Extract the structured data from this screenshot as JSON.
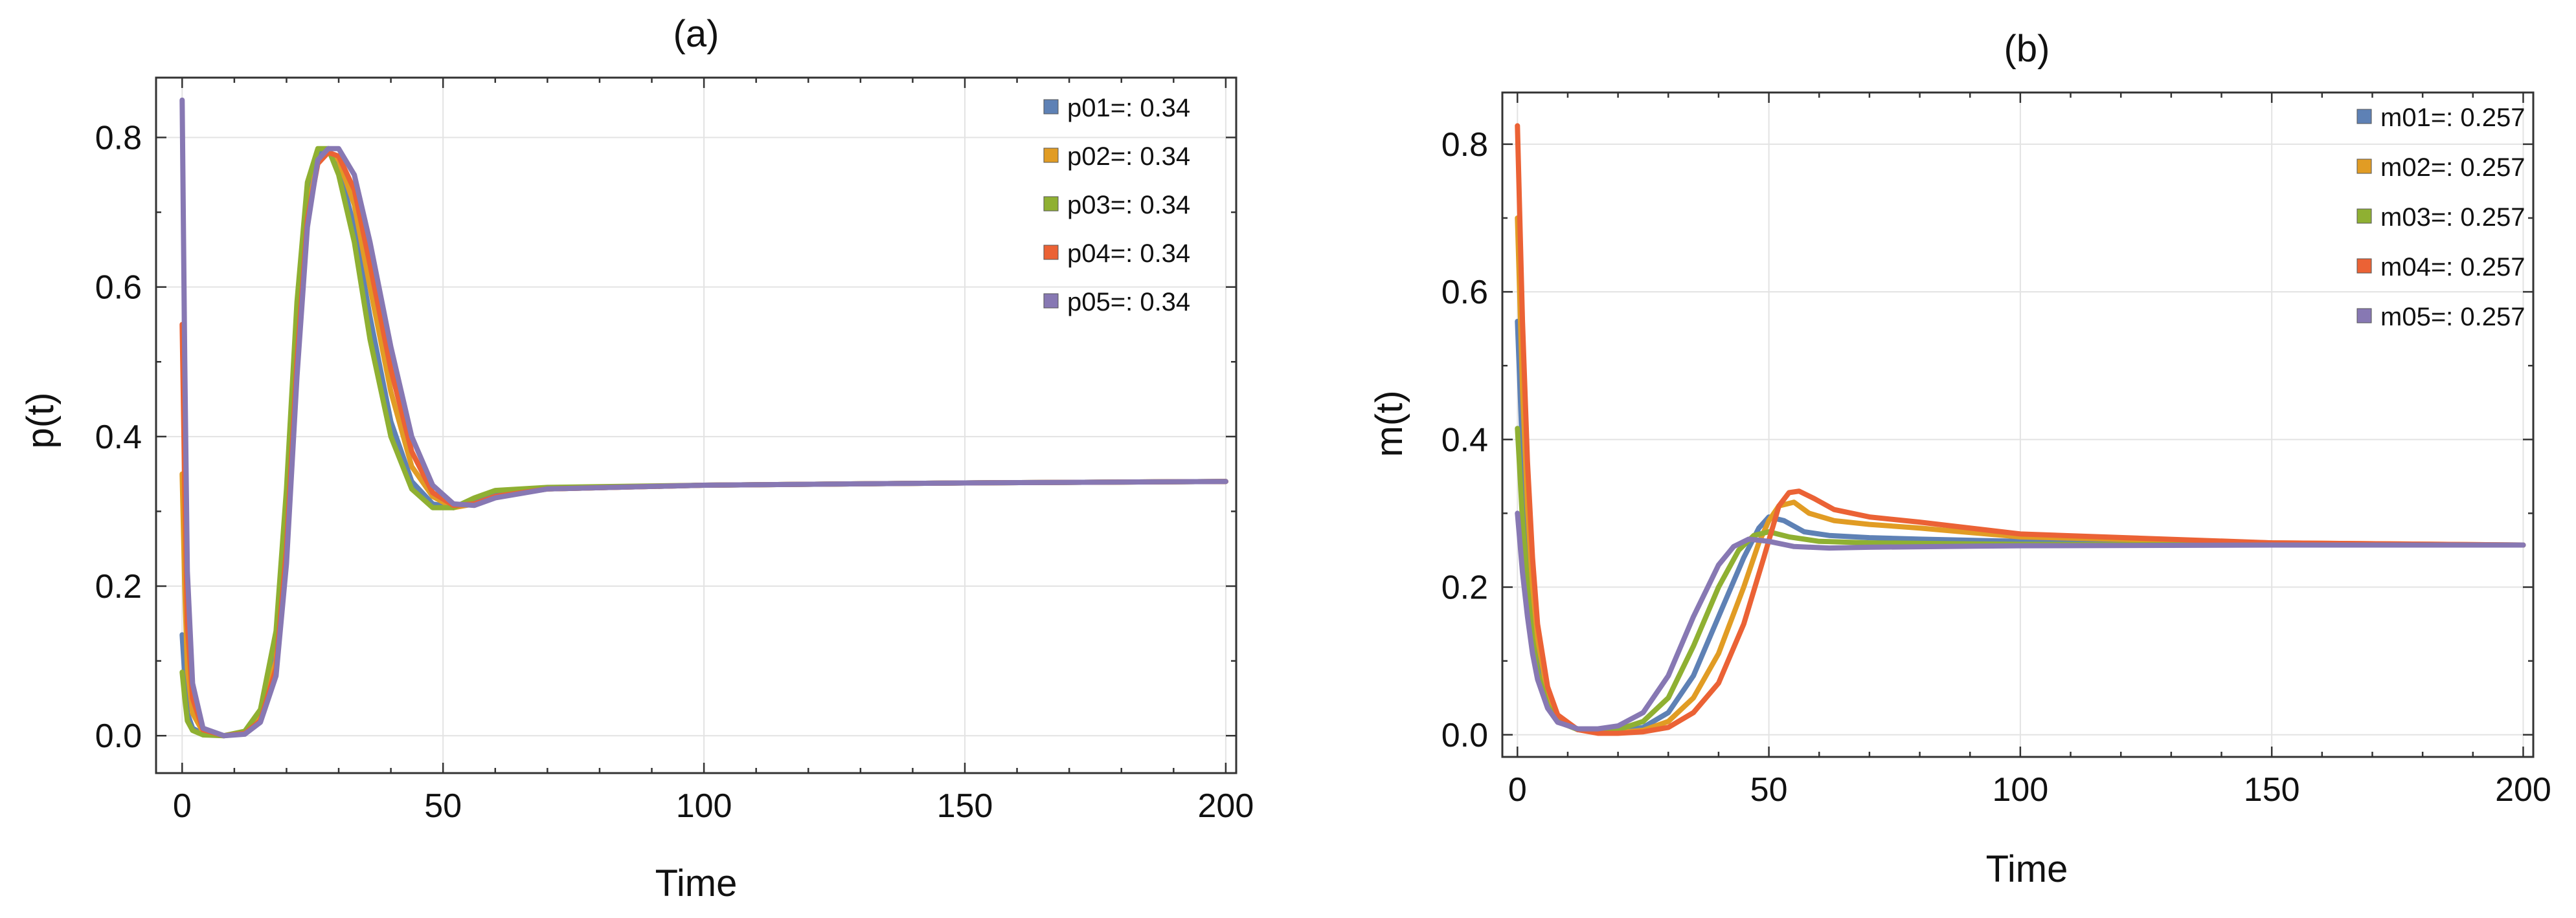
{
  "chart_data": [
    {
      "type": "line",
      "panel": "(a)",
      "title": "(a)",
      "xlabel": "Time",
      "ylabel": "p(t)",
      "xlim": [
        -5,
        202
      ],
      "ylim": [
        -0.05,
        0.88
      ],
      "xticks": [
        0,
        50,
        100,
        150,
        200
      ],
      "xtick_labels": [
        "0",
        "50",
        "100",
        "150",
        "200"
      ],
      "yticks": [
        0.0,
        0.2,
        0.4,
        0.6,
        0.8
      ],
      "ytick_labels": [
        "0.0",
        "0.2",
        "0.4",
        "0.6",
        "0.8"
      ],
      "grid": true,
      "legend_position": "top-right",
      "series": [
        {
          "name": "p01",
          "label": "p01=: 0.34",
          "color": "#5E81B5",
          "points": [
            [
              0,
              0.135
            ],
            [
              0.5,
              0.08
            ],
            [
              1,
              0.03
            ],
            [
              2,
              0.01
            ],
            [
              4,
              0.002
            ],
            [
              8,
              0.0
            ],
            [
              12,
              0.005
            ],
            [
              15,
              0.03
            ],
            [
              18,
              0.12
            ],
            [
              20,
              0.3
            ],
            [
              22,
              0.55
            ],
            [
              24,
              0.72
            ],
            [
              26,
              0.78
            ],
            [
              28,
              0.785
            ],
            [
              30,
              0.76
            ],
            [
              33,
              0.68
            ],
            [
              36,
              0.56
            ],
            [
              40,
              0.42
            ],
            [
              44,
              0.34
            ],
            [
              48,
              0.31
            ],
            [
              52,
              0.305
            ],
            [
              56,
              0.315
            ],
            [
              60,
              0.325
            ],
            [
              70,
              0.33
            ],
            [
              100,
              0.335
            ],
            [
              150,
              0.338
            ],
            [
              200,
              0.34
            ]
          ]
        },
        {
          "name": "p02",
          "label": "p02=: 0.34",
          "color": "#E19C24",
          "points": [
            [
              0,
              0.35
            ],
            [
              0.5,
              0.2
            ],
            [
              1,
              0.09
            ],
            [
              2,
              0.03
            ],
            [
              4,
              0.005
            ],
            [
              8,
              0.0
            ],
            [
              12,
              0.004
            ],
            [
              15,
              0.025
            ],
            [
              18,
              0.1
            ],
            [
              20,
              0.27
            ],
            [
              22,
              0.52
            ],
            [
              24,
              0.7
            ],
            [
              26,
              0.77
            ],
            [
              28,
              0.78
            ],
            [
              30,
              0.77
            ],
            [
              33,
              0.71
            ],
            [
              36,
              0.6
            ],
            [
              40,
              0.46
            ],
            [
              44,
              0.36
            ],
            [
              48,
              0.32
            ],
            [
              52,
              0.305
            ],
            [
              56,
              0.31
            ],
            [
              60,
              0.32
            ],
            [
              70,
              0.33
            ],
            [
              100,
              0.335
            ],
            [
              150,
              0.338
            ],
            [
              200,
              0.34
            ]
          ]
        },
        {
          "name": "p03",
          "label": "p03=: 0.34",
          "color": "#8FB032",
          "points": [
            [
              0,
              0.085
            ],
            [
              0.5,
              0.05
            ],
            [
              1,
              0.02
            ],
            [
              2,
              0.007
            ],
            [
              4,
              0.001
            ],
            [
              8,
              0.0
            ],
            [
              12,
              0.006
            ],
            [
              15,
              0.035
            ],
            [
              18,
              0.14
            ],
            [
              20,
              0.33
            ],
            [
              22,
              0.58
            ],
            [
              24,
              0.74
            ],
            [
              26,
              0.785
            ],
            [
              28,
              0.785
            ],
            [
              30,
              0.75
            ],
            [
              33,
              0.66
            ],
            [
              36,
              0.53
            ],
            [
              40,
              0.4
            ],
            [
              44,
              0.33
            ],
            [
              48,
              0.305
            ],
            [
              52,
              0.305
            ],
            [
              56,
              0.318
            ],
            [
              60,
              0.328
            ],
            [
              70,
              0.332
            ],
            [
              100,
              0.335
            ],
            [
              150,
              0.338
            ],
            [
              200,
              0.34
            ]
          ]
        },
        {
          "name": "p04",
          "label": "p04=: 0.34",
          "color": "#EB6235",
          "points": [
            [
              0,
              0.55
            ],
            [
              0.5,
              0.33
            ],
            [
              1,
              0.15
            ],
            [
              2,
              0.05
            ],
            [
              4,
              0.008
            ],
            [
              8,
              0.0
            ],
            [
              12,
              0.003
            ],
            [
              15,
              0.02
            ],
            [
              18,
              0.09
            ],
            [
              20,
              0.25
            ],
            [
              22,
              0.5
            ],
            [
              24,
              0.69
            ],
            [
              26,
              0.765
            ],
            [
              28,
              0.78
            ],
            [
              30,
              0.775
            ],
            [
              33,
              0.73
            ],
            [
              36,
              0.63
            ],
            [
              40,
              0.49
            ],
            [
              44,
              0.38
            ],
            [
              48,
              0.325
            ],
            [
              52,
              0.308
            ],
            [
              56,
              0.31
            ],
            [
              60,
              0.32
            ],
            [
              70,
              0.33
            ],
            [
              100,
              0.335
            ],
            [
              150,
              0.338
            ],
            [
              200,
              0.34
            ]
          ]
        },
        {
          "name": "p05",
          "label": "p05=: 0.34",
          "color": "#8778B3",
          "points": [
            [
              0,
              0.85
            ],
            [
              0.5,
              0.5
            ],
            [
              1,
              0.22
            ],
            [
              2,
              0.07
            ],
            [
              4,
              0.01
            ],
            [
              8,
              0.0
            ],
            [
              12,
              0.002
            ],
            [
              15,
              0.018
            ],
            [
              18,
              0.08
            ],
            [
              20,
              0.23
            ],
            [
              22,
              0.48
            ],
            [
              24,
              0.68
            ],
            [
              26,
              0.77
            ],
            [
              28,
              0.785
            ],
            [
              30,
              0.785
            ],
            [
              33,
              0.75
            ],
            [
              36,
              0.66
            ],
            [
              40,
              0.52
            ],
            [
              44,
              0.4
            ],
            [
              48,
              0.335
            ],
            [
              52,
              0.31
            ],
            [
              56,
              0.308
            ],
            [
              60,
              0.318
            ],
            [
              70,
              0.33
            ],
            [
              100,
              0.335
            ],
            [
              150,
              0.338
            ],
            [
              200,
              0.34
            ]
          ]
        }
      ]
    },
    {
      "type": "line",
      "panel": "(b)",
      "title": "(b)",
      "xlabel": "Time",
      "ylabel": "m(t)",
      "xlim": [
        -3,
        202
      ],
      "ylim": [
        -0.03,
        0.87
      ],
      "xticks": [
        0,
        50,
        100,
        150,
        200
      ],
      "xtick_labels": [
        "0",
        "50",
        "100",
        "150",
        "200"
      ],
      "yticks": [
        0.0,
        0.2,
        0.4,
        0.6,
        0.8
      ],
      "ytick_labels": [
        "0.0",
        "0.2",
        "0.4",
        "0.6",
        "0.8"
      ],
      "grid": true,
      "legend_position": "top-right",
      "series": [
        {
          "name": "m01",
          "label": "m01=: 0.257",
          "color": "#5E81B5",
          "points": [
            [
              0,
              0.56
            ],
            [
              1,
              0.38
            ],
            [
              2,
              0.25
            ],
            [
              3,
              0.16
            ],
            [
              4,
              0.1
            ],
            [
              6,
              0.045
            ],
            [
              8,
              0.02
            ],
            [
              12,
              0.007
            ],
            [
              16,
              0.004
            ],
            [
              20,
              0.004
            ],
            [
              25,
              0.01
            ],
            [
              30,
              0.03
            ],
            [
              35,
              0.08
            ],
            [
              40,
              0.16
            ],
            [
              45,
              0.24
            ],
            [
              48,
              0.28
            ],
            [
              50,
              0.295
            ],
            [
              53,
              0.29
            ],
            [
              57,
              0.275
            ],
            [
              62,
              0.27
            ],
            [
              70,
              0.267
            ],
            [
              80,
              0.265
            ],
            [
              100,
              0.262
            ],
            [
              150,
              0.258
            ],
            [
              200,
              0.257
            ]
          ]
        },
        {
          "name": "m02",
          "label": "m02=: 0.257",
          "color": "#E19C24",
          "points": [
            [
              0,
              0.7
            ],
            [
              1,
              0.47
            ],
            [
              2,
              0.31
            ],
            [
              3,
              0.2
            ],
            [
              4,
              0.13
            ],
            [
              6,
              0.055
            ],
            [
              8,
              0.024
            ],
            [
              12,
              0.007
            ],
            [
              16,
              0.003
            ],
            [
              20,
              0.003
            ],
            [
              25,
              0.006
            ],
            [
              30,
              0.018
            ],
            [
              35,
              0.05
            ],
            [
              40,
              0.11
            ],
            [
              45,
              0.2
            ],
            [
              48,
              0.26
            ],
            [
              50,
              0.29
            ],
            [
              52,
              0.31
            ],
            [
              55,
              0.315
            ],
            [
              58,
              0.3
            ],
            [
              63,
              0.29
            ],
            [
              70,
              0.285
            ],
            [
              80,
              0.28
            ],
            [
              100,
              0.268
            ],
            [
              150,
              0.26
            ],
            [
              200,
              0.257
            ]
          ]
        },
        {
          "name": "m03",
          "label": "m03=: 0.257",
          "color": "#8FB032",
          "points": [
            [
              0,
              0.415
            ],
            [
              1,
              0.29
            ],
            [
              2,
              0.2
            ],
            [
              3,
              0.13
            ],
            [
              4,
              0.085
            ],
            [
              6,
              0.04
            ],
            [
              8,
              0.018
            ],
            [
              12,
              0.007
            ],
            [
              16,
              0.005
            ],
            [
              20,
              0.007
            ],
            [
              25,
              0.018
            ],
            [
              30,
              0.05
            ],
            [
              35,
              0.12
            ],
            [
              40,
              0.2
            ],
            [
              44,
              0.25
            ],
            [
              47,
              0.27
            ],
            [
              50,
              0.275
            ],
            [
              54,
              0.268
            ],
            [
              60,
              0.262
            ],
            [
              70,
              0.26
            ],
            [
              100,
              0.258
            ],
            [
              150,
              0.257
            ],
            [
              200,
              0.257
            ]
          ]
        },
        {
          "name": "m04",
          "label": "m04=: 0.257",
          "color": "#EB6235",
          "points": [
            [
              0,
              0.825
            ],
            [
              1,
              0.56
            ],
            [
              2,
              0.37
            ],
            [
              3,
              0.24
            ],
            [
              4,
              0.15
            ],
            [
              6,
              0.065
            ],
            [
              8,
              0.027
            ],
            [
              12,
              0.007
            ],
            [
              16,
              0.002
            ],
            [
              20,
              0.002
            ],
            [
              25,
              0.004
            ],
            [
              30,
              0.01
            ],
            [
              35,
              0.03
            ],
            [
              40,
              0.07
            ],
            [
              45,
              0.15
            ],
            [
              49,
              0.24
            ],
            [
              52,
              0.31
            ],
            [
              54,
              0.328
            ],
            [
              56,
              0.33
            ],
            [
              59,
              0.32
            ],
            [
              63,
              0.305
            ],
            [
              70,
              0.295
            ],
            [
              80,
              0.288
            ],
            [
              100,
              0.272
            ],
            [
              150,
              0.26
            ],
            [
              200,
              0.257
            ]
          ]
        },
        {
          "name": "m05",
          "label": "m05=: 0.257",
          "color": "#8778B3",
          "points": [
            [
              0,
              0.3
            ],
            [
              1,
              0.22
            ],
            [
              2,
              0.16
            ],
            [
              3,
              0.11
            ],
            [
              4,
              0.075
            ],
            [
              6,
              0.036
            ],
            [
              8,
              0.017
            ],
            [
              12,
              0.008
            ],
            [
              16,
              0.008
            ],
            [
              20,
              0.012
            ],
            [
              25,
              0.03
            ],
            [
              30,
              0.08
            ],
            [
              35,
              0.16
            ],
            [
              40,
              0.23
            ],
            [
              43,
              0.255
            ],
            [
              46,
              0.265
            ],
            [
              50,
              0.262
            ],
            [
              55,
              0.255
            ],
            [
              62,
              0.253
            ],
            [
              70,
              0.254
            ],
            [
              100,
              0.256
            ],
            [
              150,
              0.257
            ],
            [
              200,
              0.257
            ]
          ]
        }
      ]
    }
  ]
}
